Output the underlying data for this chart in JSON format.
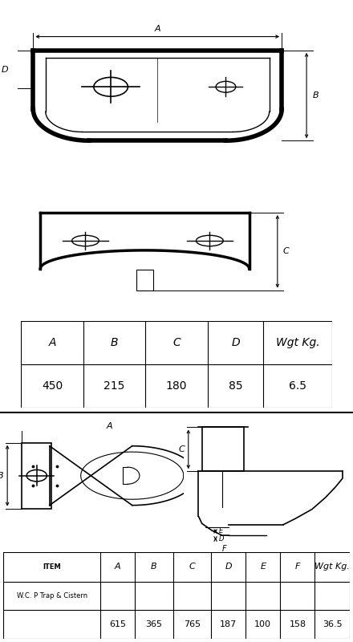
{
  "bg_color": "#ffffff",
  "line_color": "#000000",
  "top_table": {
    "headers": [
      "A",
      "B",
      "C",
      "D",
      "Wgt Kg."
    ],
    "values": [
      "450",
      "215",
      "180",
      "85",
      "6.5"
    ]
  },
  "bottom_table": {
    "col1_header": "ITEM",
    "col_headers": [
      "A",
      "B",
      "C",
      "D",
      "E",
      "F",
      "Wgt Kg."
    ],
    "item_name": "W.C. P Trap & Cistern",
    "values": [
      "615",
      "365",
      "765",
      "187",
      "100",
      "158",
      "36.5"
    ]
  }
}
